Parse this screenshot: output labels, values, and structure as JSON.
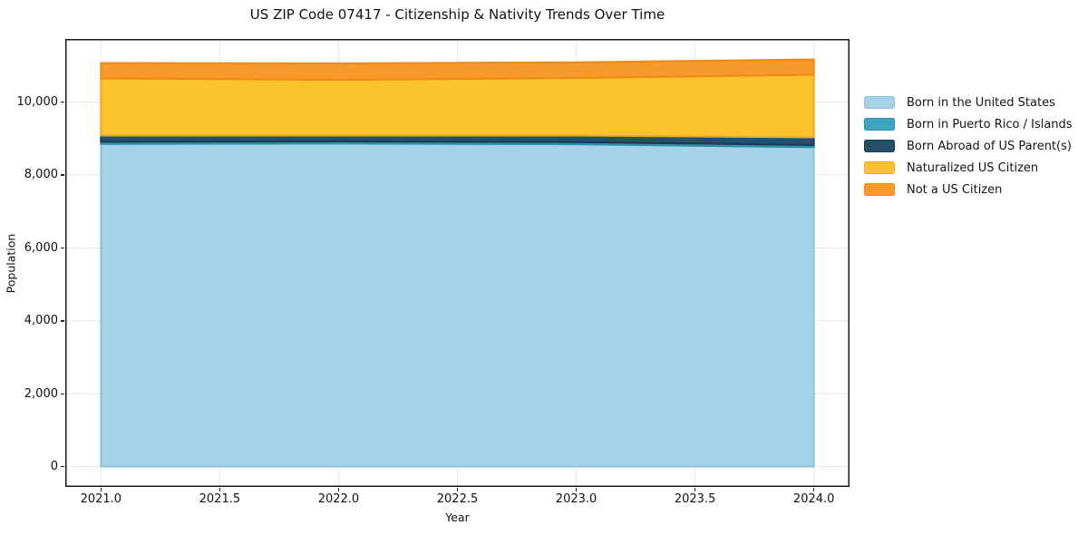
{
  "title": "US ZIP Code 07417 - Citizenship & Nativity Trends Over Time",
  "axes": {
    "x": {
      "label": "Year",
      "tick_labels": [
        "2021.0",
        "2021.5",
        "2022.0",
        "2022.5",
        "2023.0",
        "2023.5",
        "2024.0"
      ]
    },
    "y": {
      "label": "Population",
      "tick_labels": [
        "0",
        "2,000",
        "4,000",
        "6,000",
        "8,000",
        "10,000"
      ]
    }
  },
  "chart_data": {
    "type": "area",
    "stacked": true,
    "title": "US ZIP Code 07417 - Citizenship & Nativity Trends Over Time",
    "xlabel": "Year",
    "ylabel": "Population",
    "x": [
      2021,
      2022,
      2023,
      2024
    ],
    "series": [
      {
        "name": "Born in the United States",
        "color": "#a6d2e8",
        "edge": "#8fc2dc",
        "values": [
          8850,
          8860,
          8840,
          8760
        ]
      },
      {
        "name": "Born in Puerto Rico / Islands",
        "color": "#3fa5bf",
        "edge": "#2f8ea8",
        "values": [
          60,
          60,
          60,
          60
        ]
      },
      {
        "name": "Born Abroad of US Parent(s)",
        "color": "#25506a",
        "edge": "#173c51",
        "values": [
          170,
          160,
          180,
          210
        ]
      },
      {
        "name": "Naturalized US Citizen",
        "color": "#fcc32d",
        "edge": "#eea81e",
        "values": [
          1570,
          1530,
          1580,
          1720
        ]
      },
      {
        "name": "Not a US Citizen",
        "color": "#f8992b",
        "edge": "#ee8816",
        "values": [
          420,
          450,
          430,
          420
        ]
      }
    ],
    "totals": [
      11070,
      11060,
      11090,
      11170
    ],
    "xticks": [
      2021.0,
      2021.5,
      2022.0,
      2022.5,
      2023.0,
      2023.5,
      2024.0
    ],
    "yticks": [
      0,
      2000,
      4000,
      6000,
      8000,
      10000
    ],
    "xlim": [
      2020.85,
      2024.15
    ],
    "ylim": [
      -560,
      11730
    ],
    "grid": true,
    "grid_color": "#e9e9e9",
    "spine_color": "#1a1a1a",
    "legend_position": "outside-right"
  }
}
